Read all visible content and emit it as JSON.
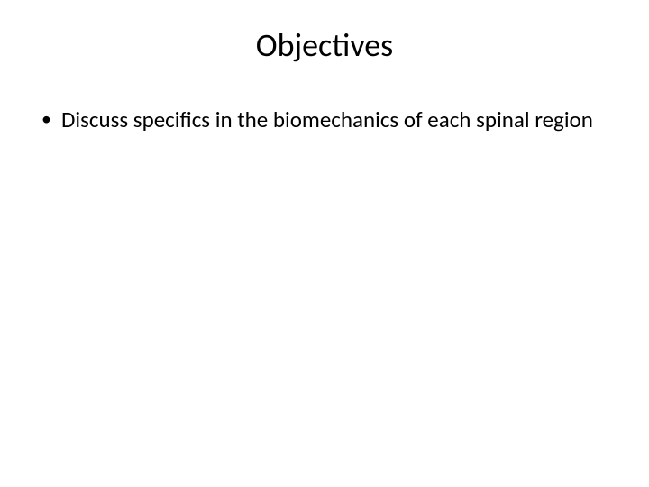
{
  "slide": {
    "title": "Objectives",
    "title_fontsize": 36,
    "title_color": "#000000",
    "title_align": "center",
    "background_color": "#ffffff",
    "bullets": [
      {
        "text": "Discuss specifics in the biomechanics of each spinal region"
      }
    ],
    "bullet_fontsize": 25,
    "bullet_color": "#000000",
    "bullet_marker": "•",
    "font_family": "Calibri"
  }
}
